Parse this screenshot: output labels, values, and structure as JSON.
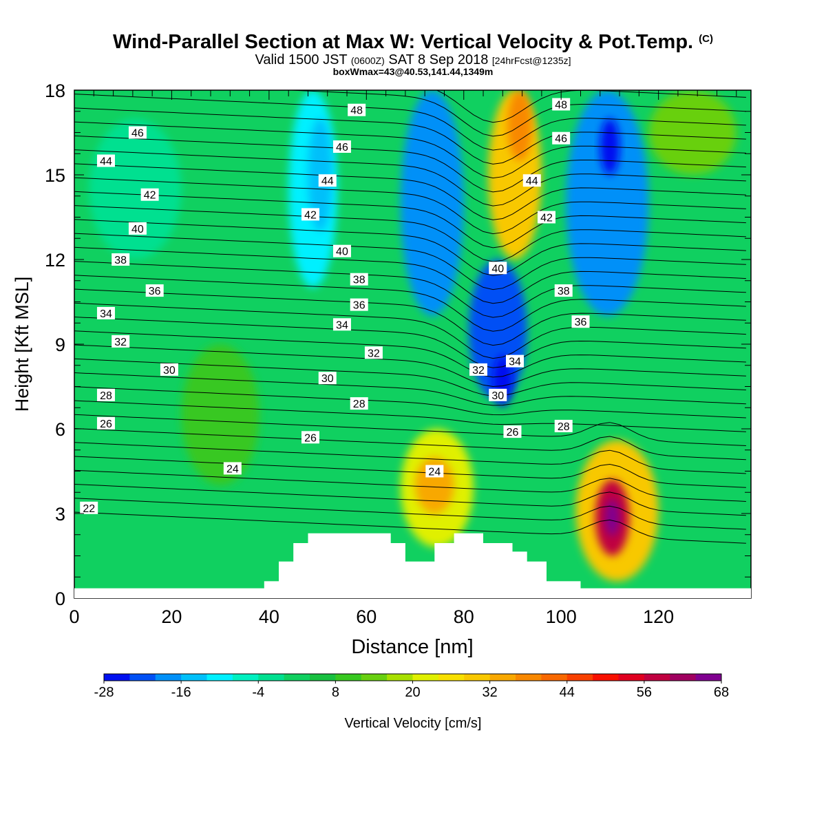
{
  "header": {
    "title": "Wind-Parallel Section at Max W: Vertical Velocity & Pot.Temp.",
    "copyright": "(C)",
    "subtitle_a": "Valid 1500 JST",
    "subtitle_b": "(0600Z)",
    "subtitle_c": "SAT 8 Sep 2018",
    "subtitle_d": "[24hrFcst@1235z]",
    "boxline": "boxWmax=43@40.53,141.44,1349m"
  },
  "chart_data": {
    "type": "heatmap",
    "xlabel": "Distance [nm]",
    "ylabel": "Height [Kft MSL]",
    "xlim": [
      0,
      139
    ],
    "ylim": [
      0,
      18
    ],
    "x_ticks": [
      0,
      20,
      40,
      60,
      80,
      100,
      120
    ],
    "y_ticks": [
      0,
      3,
      6,
      9,
      12,
      15,
      18
    ],
    "colorbar": {
      "label": "Vertical Velocity [cm/s]",
      "tick_labels": [
        -28,
        -16,
        -4,
        8,
        20,
        32,
        44,
        56,
        68
      ],
      "levels": [
        -28,
        -24,
        -20,
        -16,
        -12,
        -8,
        -4,
        0,
        4,
        8,
        12,
        16,
        20,
        24,
        28,
        32,
        36,
        40,
        44,
        48,
        52,
        56,
        60,
        64,
        68
      ],
      "colors": [
        "#0010f0",
        "#0050f5",
        "#0090f8",
        "#00c0fa",
        "#00f0ff",
        "#00f0c0",
        "#00e090",
        "#10d060",
        "#18c040",
        "#38c820",
        "#68d010",
        "#a8e000",
        "#e0f000",
        "#f8e000",
        "#f8c800",
        "#f8a800",
        "#f88800",
        "#f86800",
        "#f84000",
        "#f81000",
        "#e00020",
        "#c00040",
        "#a00060",
        "#800090"
      ]
    },
    "velocity_cells": [
      {
        "x": [
          3,
          22
        ],
        "y": [
          12,
          17
        ],
        "v": -4
      },
      {
        "x": [
          22,
          38
        ],
        "y": [
          4,
          9
        ],
        "v": 8
      },
      {
        "x": [
          44,
          54
        ],
        "y": [
          11,
          18
        ],
        "v": -10
      },
      {
        "x": [
          48,
          53
        ],
        "y": [
          13,
          17
        ],
        "v": -16
      },
      {
        "x": [
          67,
          80
        ],
        "y": [
          10,
          18
        ],
        "v": -18
      },
      {
        "x": [
          81,
          93
        ],
        "y": [
          7,
          12
        ],
        "v": -22
      },
      {
        "x": [
          86,
          90
        ],
        "y": [
          6.8,
          8.6
        ],
        "v": -26
      },
      {
        "x": [
          85,
          96
        ],
        "y": [
          12,
          18
        ],
        "v": 28
      },
      {
        "x": [
          89,
          94
        ],
        "y": [
          15.5,
          18
        ],
        "v": 36
      },
      {
        "x": [
          101,
          118
        ],
        "y": [
          10,
          18
        ],
        "v": -18
      },
      {
        "x": [
          108,
          112
        ],
        "y": [
          15,
          17
        ],
        "v": -28
      },
      {
        "x": [
          118,
          136
        ],
        "y": [
          15,
          18
        ],
        "v": 14
      },
      {
        "x": [
          67,
          82
        ],
        "y": [
          1.8,
          6
        ],
        "v": 22
      },
      {
        "x": [
          70,
          78
        ],
        "y": [
          3,
          5
        ],
        "v": 34
      },
      {
        "x": [
          103,
          120
        ],
        "y": [
          0.6,
          5.6
        ],
        "v": 30
      },
      {
        "x": [
          107,
          114
        ],
        "y": [
          1.5,
          4.2
        ],
        "v": 56
      },
      {
        "x": [
          109,
          112
        ],
        "y": [
          2.2,
          3.5
        ],
        "v": 68
      }
    ],
    "terrain": [
      [
        39,
        0
      ],
      [
        39,
        0.6
      ],
      [
        42,
        0.6
      ],
      [
        42,
        1.3
      ],
      [
        45,
        1.3
      ],
      [
        45,
        1.95
      ],
      [
        48,
        1.95
      ],
      [
        48,
        2.3
      ],
      [
        65,
        2.3
      ],
      [
        65,
        1.95
      ],
      [
        68,
        1.95
      ],
      [
        68,
        1.3
      ],
      [
        74,
        1.3
      ],
      [
        74,
        1.95
      ],
      [
        78,
        1.95
      ],
      [
        78,
        2.3
      ],
      [
        84,
        2.3
      ],
      [
        84,
        1.95
      ],
      [
        90,
        1.95
      ],
      [
        90,
        1.65
      ],
      [
        93,
        1.65
      ],
      [
        93,
        1.3
      ],
      [
        97,
        1.3
      ],
      [
        97,
        0.6
      ],
      [
        104,
        0.6
      ],
      [
        104,
        0
      ]
    ],
    "theta_labels": [
      {
        "text": "48",
        "x": 58,
        "y": 17.3
      },
      {
        "text": "48",
        "x": 100,
        "y": 17.5
      },
      {
        "text": "46",
        "x": 13,
        "y": 16.5
      },
      {
        "text": "46",
        "x": 55,
        "y": 16
      },
      {
        "text": "46",
        "x": 100,
        "y": 16.3
      },
      {
        "text": "44",
        "x": 6.5,
        "y": 15.5
      },
      {
        "text": "44",
        "x": 52,
        "y": 14.8
      },
      {
        "text": "44",
        "x": 94,
        "y": 14.8
      },
      {
        "text": "42",
        "x": 15.5,
        "y": 14.3
      },
      {
        "text": "42",
        "x": 48.5,
        "y": 13.6
      },
      {
        "text": "42",
        "x": 97,
        "y": 13.5
      },
      {
        "text": "40",
        "x": 13,
        "y": 13.1
      },
      {
        "text": "40",
        "x": 55,
        "y": 12.3
      },
      {
        "text": "40",
        "x": 87,
        "y": 11.7
      },
      {
        "text": "38",
        "x": 9.5,
        "y": 12
      },
      {
        "text": "38",
        "x": 58.5,
        "y": 11.3
      },
      {
        "text": "38",
        "x": 100.5,
        "y": 10.9
      },
      {
        "text": "36",
        "x": 16.5,
        "y": 10.9
      },
      {
        "text": "36",
        "x": 58.5,
        "y": 10.4
      },
      {
        "text": "36",
        "x": 104,
        "y": 9.8
      },
      {
        "text": "34",
        "x": 6.5,
        "y": 10.1
      },
      {
        "text": "34",
        "x": 55,
        "y": 9.7
      },
      {
        "text": "34",
        "x": 90.5,
        "y": 8.4
      },
      {
        "text": "32",
        "x": 9.5,
        "y": 9.1
      },
      {
        "text": "32",
        "x": 61.5,
        "y": 8.7
      },
      {
        "text": "32",
        "x": 83,
        "y": 8.1
      },
      {
        "text": "30",
        "x": 19.5,
        "y": 8.1
      },
      {
        "text": "30",
        "x": 52,
        "y": 7.8
      },
      {
        "text": "30",
        "x": 87,
        "y": 7.2
      },
      {
        "text": "28",
        "x": 6.5,
        "y": 7.2
      },
      {
        "text": "28",
        "x": 58.5,
        "y": 6.9
      },
      {
        "text": "28",
        "x": 100.5,
        "y": 6.1
      },
      {
        "text": "26",
        "x": 6.5,
        "y": 6.2
      },
      {
        "text": "26",
        "x": 48.5,
        "y": 5.7
      },
      {
        "text": "26",
        "x": 90,
        "y": 5.9
      },
      {
        "text": "24",
        "x": 32.5,
        "y": 4.6
      },
      {
        "text": "24",
        "x": 74,
        "y": 4.5
      },
      {
        "text": "22",
        "x": 3,
        "y": 3.2
      }
    ]
  }
}
